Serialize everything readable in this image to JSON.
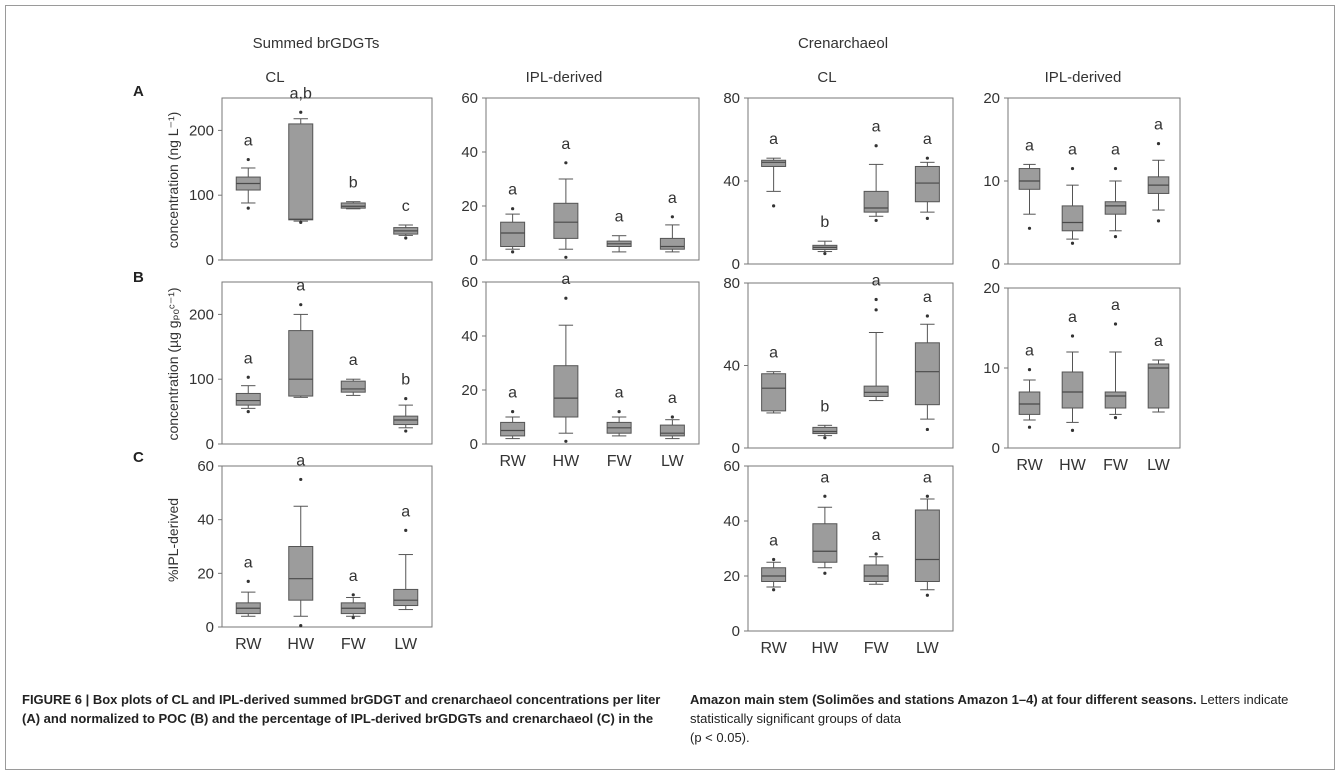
{
  "headers": {
    "group_left": "Summed brGDGTs",
    "group_right": "Crenarchaeol",
    "cl": "CL",
    "ipl": "IPL-derived"
  },
  "row_labels": [
    "A",
    "B",
    "C"
  ],
  "y_labels": {
    "A": "concentration (ng L⁻¹)",
    "B": "concentration (µg gₚₒᶜ⁻¹)",
    "C": "%IPL-derived"
  },
  "caption": {
    "left_bold": "FIGURE 6 | Box plots of CL and IPL-derived summed brGDGT and crenarchaeol concentrations per liter (A) and normalized to POC (B) and the percentage of IPL-derived brGDGTs and crenarchaeol (C) in the",
    "right_bold": "Amazon main stem (Solimões and stations Amazon 1–4) at four different seasons.",
    "right_normal": " Letters indicate statistically significant groups of data",
    "right_p": "(p < 0.05)."
  },
  "chart_data": [
    {
      "id": "brA_CL",
      "type": "box",
      "row": "A",
      "group": "Summed brGDGTs",
      "fraction": "CL",
      "categories": [
        "RW",
        "HW",
        "FW",
        "LW"
      ],
      "ylim": [
        0,
        250
      ],
      "yticks": [
        0,
        100,
        200
      ],
      "boxes": [
        {
          "whislo": 88,
          "q1": 108,
          "med": 118,
          "q3": 128,
          "whishi": 142,
          "fliers": [
            80,
            155
          ],
          "letter": "a"
        },
        {
          "whislo": 60,
          "q1": 62,
          "med": 63,
          "q3": 210,
          "whishi": 218,
          "fliers": [
            58,
            228
          ],
          "letter": "a,b"
        },
        {
          "whislo": 79,
          "q1": 80,
          "med": 83,
          "q3": 88,
          "whishi": 90,
          "fliers": [],
          "letter": "b"
        },
        {
          "whislo": 38,
          "q1": 40,
          "med": 45,
          "q3": 50,
          "whishi": 54,
          "fliers": [
            34
          ],
          "letter": "c"
        }
      ]
    },
    {
      "id": "brA_IPL",
      "type": "box",
      "row": "A",
      "group": "Summed brGDGTs",
      "fraction": "IPL-derived",
      "categories": [
        "RW",
        "HW",
        "FW",
        "LW"
      ],
      "ylim": [
        0,
        60
      ],
      "yticks": [
        0,
        20,
        40,
        60
      ],
      "boxes": [
        {
          "whislo": 4,
          "q1": 5,
          "med": 10,
          "q3": 14,
          "whishi": 17,
          "fliers": [
            19,
            3
          ],
          "letter": "a"
        },
        {
          "whislo": 4,
          "q1": 8,
          "med": 14,
          "q3": 21,
          "whishi": 30,
          "fliers": [
            36,
            1
          ],
          "letter": "a"
        },
        {
          "whislo": 3,
          "q1": 5,
          "med": 6,
          "q3": 7,
          "whishi": 9,
          "fliers": [],
          "letter": "a"
        },
        {
          "whislo": 3,
          "q1": 4,
          "med": 5,
          "q3": 8,
          "whishi": 13,
          "fliers": [
            16
          ],
          "letter": "a"
        }
      ]
    },
    {
      "id": "crA_CL",
      "type": "box",
      "row": "A",
      "group": "Crenarchaeol",
      "fraction": "CL",
      "categories": [
        "RW",
        "HW",
        "FW",
        "LW"
      ],
      "ylim": [
        0,
        80
      ],
      "yticks": [
        0,
        40,
        80
      ],
      "boxes": [
        {
          "whislo": 35,
          "q1": 47,
          "med": 49,
          "q3": 50,
          "whishi": 51,
          "fliers": [
            28
          ],
          "letter": "a"
        },
        {
          "whislo": 6,
          "q1": 7,
          "med": 8,
          "q3": 9,
          "whishi": 11,
          "fliers": [
            5
          ],
          "letter": "b"
        },
        {
          "whislo": 23,
          "q1": 25,
          "med": 27,
          "q3": 35,
          "whishi": 48,
          "fliers": [
            57,
            21
          ],
          "letter": "a"
        },
        {
          "whislo": 25,
          "q1": 30,
          "med": 39,
          "q3": 47,
          "whishi": 49,
          "fliers": [
            51,
            22
          ],
          "letter": "a"
        }
      ]
    },
    {
      "id": "crA_IPL",
      "type": "box",
      "row": "A",
      "group": "Crenarchaeol",
      "fraction": "IPL-derived",
      "categories": [
        "RW",
        "HW",
        "FW",
        "LW"
      ],
      "ylim": [
        0,
        20
      ],
      "yticks": [
        0,
        10,
        20
      ],
      "boxes": [
        {
          "whislo": 6,
          "q1": 9,
          "med": 10,
          "q3": 11.5,
          "whishi": 12,
          "fliers": [
            4.3
          ],
          "letter": "a"
        },
        {
          "whislo": 3,
          "q1": 4,
          "med": 5,
          "q3": 7,
          "whishi": 9.5,
          "fliers": [
            11.5,
            2.5
          ],
          "letter": "a"
        },
        {
          "whislo": 4,
          "q1": 6,
          "med": 7,
          "q3": 7.5,
          "whishi": 10,
          "fliers": [
            11.5,
            3.3
          ],
          "letter": "a"
        },
        {
          "whislo": 6.5,
          "q1": 8.5,
          "med": 9.5,
          "q3": 10.5,
          "whishi": 12.5,
          "fliers": [
            14.5,
            5.2
          ],
          "letter": "a"
        }
      ]
    },
    {
      "id": "brB_CL",
      "type": "box",
      "row": "B",
      "group": "Summed brGDGTs",
      "fraction": "CL",
      "categories": [
        "RW",
        "HW",
        "FW",
        "LW"
      ],
      "ylim": [
        0,
        250
      ],
      "yticks": [
        0,
        100,
        200
      ],
      "boxes": [
        {
          "whislo": 55,
          "q1": 60,
          "med": 67,
          "q3": 78,
          "whishi": 90,
          "fliers": [
            103,
            50
          ],
          "letter": "a"
        },
        {
          "whislo": 72,
          "q1": 74,
          "med": 100,
          "q3": 175,
          "whishi": 200,
          "fliers": [
            215
          ],
          "letter": "a"
        },
        {
          "whislo": 75,
          "q1": 80,
          "med": 85,
          "q3": 97,
          "whishi": 100,
          "fliers": [],
          "letter": "a"
        },
        {
          "whislo": 25,
          "q1": 30,
          "med": 37,
          "q3": 43,
          "whishi": 60,
          "fliers": [
            70,
            20
          ],
          "letter": "b"
        }
      ]
    },
    {
      "id": "brB_IPL",
      "type": "box",
      "row": "B",
      "group": "Summed brGDGTs",
      "fraction": "IPL-derived",
      "categories": [
        "RW",
        "HW",
        "FW",
        "LW"
      ],
      "ylim": [
        0,
        60
      ],
      "yticks": [
        0,
        20,
        40,
        60
      ],
      "boxes": [
        {
          "whislo": 2,
          "q1": 3,
          "med": 5,
          "q3": 8,
          "whishi": 10,
          "fliers": [
            12
          ],
          "letter": "a"
        },
        {
          "whislo": 4,
          "q1": 10,
          "med": 17,
          "q3": 29,
          "whishi": 44,
          "fliers": [
            54,
            1
          ],
          "letter": "a"
        },
        {
          "whislo": 3,
          "q1": 4,
          "med": 6,
          "q3": 8,
          "whishi": 10,
          "fliers": [
            12
          ],
          "letter": "a"
        },
        {
          "whislo": 2,
          "q1": 3,
          "med": 4,
          "q3": 7,
          "whishi": 9,
          "fliers": [
            10
          ],
          "letter": "a"
        }
      ]
    },
    {
      "id": "crB_CL",
      "type": "box",
      "row": "B",
      "group": "Crenarchaeol",
      "fraction": "CL",
      "categories": [
        "RW",
        "HW",
        "FW",
        "LW"
      ],
      "ylim": [
        0,
        80
      ],
      "yticks": [
        0,
        40,
        80
      ],
      "boxes": [
        {
          "whislo": 17,
          "q1": 18,
          "med": 29,
          "q3": 36,
          "whishi": 37,
          "fliers": [],
          "letter": "a"
        },
        {
          "whislo": 6,
          "q1": 7,
          "med": 8,
          "q3": 10,
          "whishi": 11,
          "fliers": [
            5
          ],
          "letter": "b"
        },
        {
          "whislo": 23,
          "q1": 25,
          "med": 27,
          "q3": 30,
          "whishi": 56,
          "fliers": [
            72,
            67
          ],
          "letter": "a"
        },
        {
          "whislo": 14,
          "q1": 21,
          "med": 37,
          "q3": 51,
          "whishi": 60,
          "fliers": [
            64,
            9
          ],
          "letter": "a"
        }
      ]
    },
    {
      "id": "crB_IPL",
      "type": "box",
      "row": "B",
      "group": "Crenarchaeol",
      "fraction": "IPL-derived",
      "categories": [
        "RW",
        "HW",
        "FW",
        "LW"
      ],
      "ylim": [
        0,
        20
      ],
      "yticks": [
        0,
        10,
        20
      ],
      "boxes": [
        {
          "whislo": 3.5,
          "q1": 4.2,
          "med": 5.5,
          "q3": 7,
          "whishi": 8.5,
          "fliers": [
            9.8,
            2.6
          ],
          "letter": "a"
        },
        {
          "whislo": 3.2,
          "q1": 5,
          "med": 7,
          "q3": 9.5,
          "whishi": 12,
          "fliers": [
            14,
            2.2
          ],
          "letter": "a"
        },
        {
          "whislo": 4.2,
          "q1": 5,
          "med": 6.5,
          "q3": 7,
          "whishi": 12,
          "fliers": [
            15.5,
            3.8
          ],
          "letter": "a"
        },
        {
          "whislo": 4.5,
          "q1": 5,
          "med": 10,
          "q3": 10.5,
          "whishi": 11,
          "fliers": [],
          "letter": "a"
        }
      ]
    },
    {
      "id": "brC",
      "type": "box",
      "row": "C",
      "group": "Summed brGDGTs",
      "fraction": "%IPL-derived",
      "categories": [
        "RW",
        "HW",
        "FW",
        "LW"
      ],
      "ylim": [
        0,
        60
      ],
      "yticks": [
        0,
        20,
        40,
        60
      ],
      "boxes": [
        {
          "whislo": 4,
          "q1": 5,
          "med": 7,
          "q3": 9,
          "whishi": 13,
          "fliers": [
            17
          ],
          "letter": "a"
        },
        {
          "whislo": 4,
          "q1": 10,
          "med": 18,
          "q3": 30,
          "whishi": 45,
          "fliers": [
            55,
            0.5
          ],
          "letter": "a"
        },
        {
          "whislo": 4,
          "q1": 5,
          "med": 7,
          "q3": 9,
          "whishi": 11,
          "fliers": [
            12,
            3.5
          ],
          "letter": "a"
        },
        {
          "whislo": 6.5,
          "q1": 8,
          "med": 10,
          "q3": 14,
          "whishi": 27,
          "fliers": [
            36
          ],
          "letter": "a"
        }
      ]
    },
    {
      "id": "crC",
      "type": "box",
      "row": "C",
      "group": "Crenarchaeol",
      "fraction": "%IPL-derived",
      "categories": [
        "RW",
        "HW",
        "FW",
        "LW"
      ],
      "ylim": [
        0,
        60
      ],
      "yticks": [
        0,
        20,
        40,
        60
      ],
      "boxes": [
        {
          "whislo": 16,
          "q1": 18,
          "med": 20,
          "q3": 23,
          "whishi": 25,
          "fliers": [
            26,
            15
          ],
          "letter": "a"
        },
        {
          "whislo": 23,
          "q1": 25,
          "med": 29,
          "q3": 39,
          "whishi": 45,
          "fliers": [
            49,
            21
          ],
          "letter": "a"
        },
        {
          "whislo": 17,
          "q1": 18,
          "med": 20,
          "q3": 24,
          "whishi": 27,
          "fliers": [
            28
          ],
          "letter": "a"
        },
        {
          "whislo": 15,
          "q1": 18,
          "med": 26,
          "q3": 44,
          "whishi": 48,
          "fliers": [
            49,
            13
          ],
          "letter": "a"
        }
      ]
    }
  ]
}
